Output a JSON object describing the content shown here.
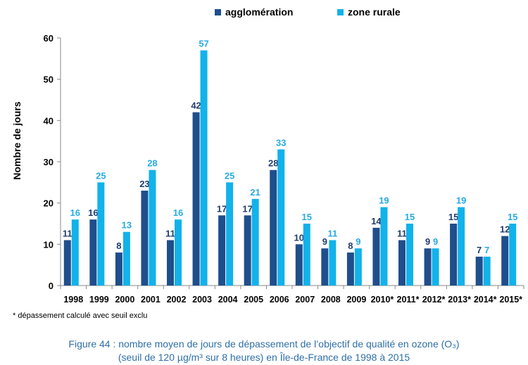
{
  "chart_data": {
    "type": "bar",
    "title": "",
    "xlabel": "",
    "ylabel": "Nombre de jours",
    "ylim": [
      0,
      60
    ],
    "yticks": [
      0,
      10,
      20,
      30,
      40,
      50,
      60
    ],
    "grid": false,
    "legend_position": "top",
    "categories": [
      "1998",
      "1999",
      "2000",
      "2001",
      "2002",
      "2003",
      "2004",
      "2005",
      "2006",
      "2007",
      "2008",
      "2009",
      "2010*",
      "2011*",
      "2012*",
      "2013*",
      "2014*",
      "2015*"
    ],
    "series": [
      {
        "name": "agglomération",
        "color": "#1f4e8c",
        "label_color": "#1f3c6e",
        "values": [
          11,
          16,
          8,
          23,
          11,
          42,
          17,
          17,
          28,
          10,
          9,
          8,
          14,
          11,
          9,
          15,
          7,
          12
        ]
      },
      {
        "name": "zone rurale",
        "color": "#12b2ea",
        "label_color": "#27aae1",
        "values": [
          16,
          25,
          13,
          28,
          16,
          57,
          25,
          21,
          33,
          15,
          11,
          9,
          19,
          15,
          9,
          19,
          7,
          15
        ]
      }
    ]
  },
  "footnote": "* dépassement calculé avec seuil exclu",
  "caption": {
    "line1": "Figure 44 : nombre moyen de jours de dépassement de l’objectif de qualité en ozone (O₃)",
    "line2": "(seuil de 120 µg/m³ sur 8 heures) en Île-de-France de 1998 à 2015"
  }
}
